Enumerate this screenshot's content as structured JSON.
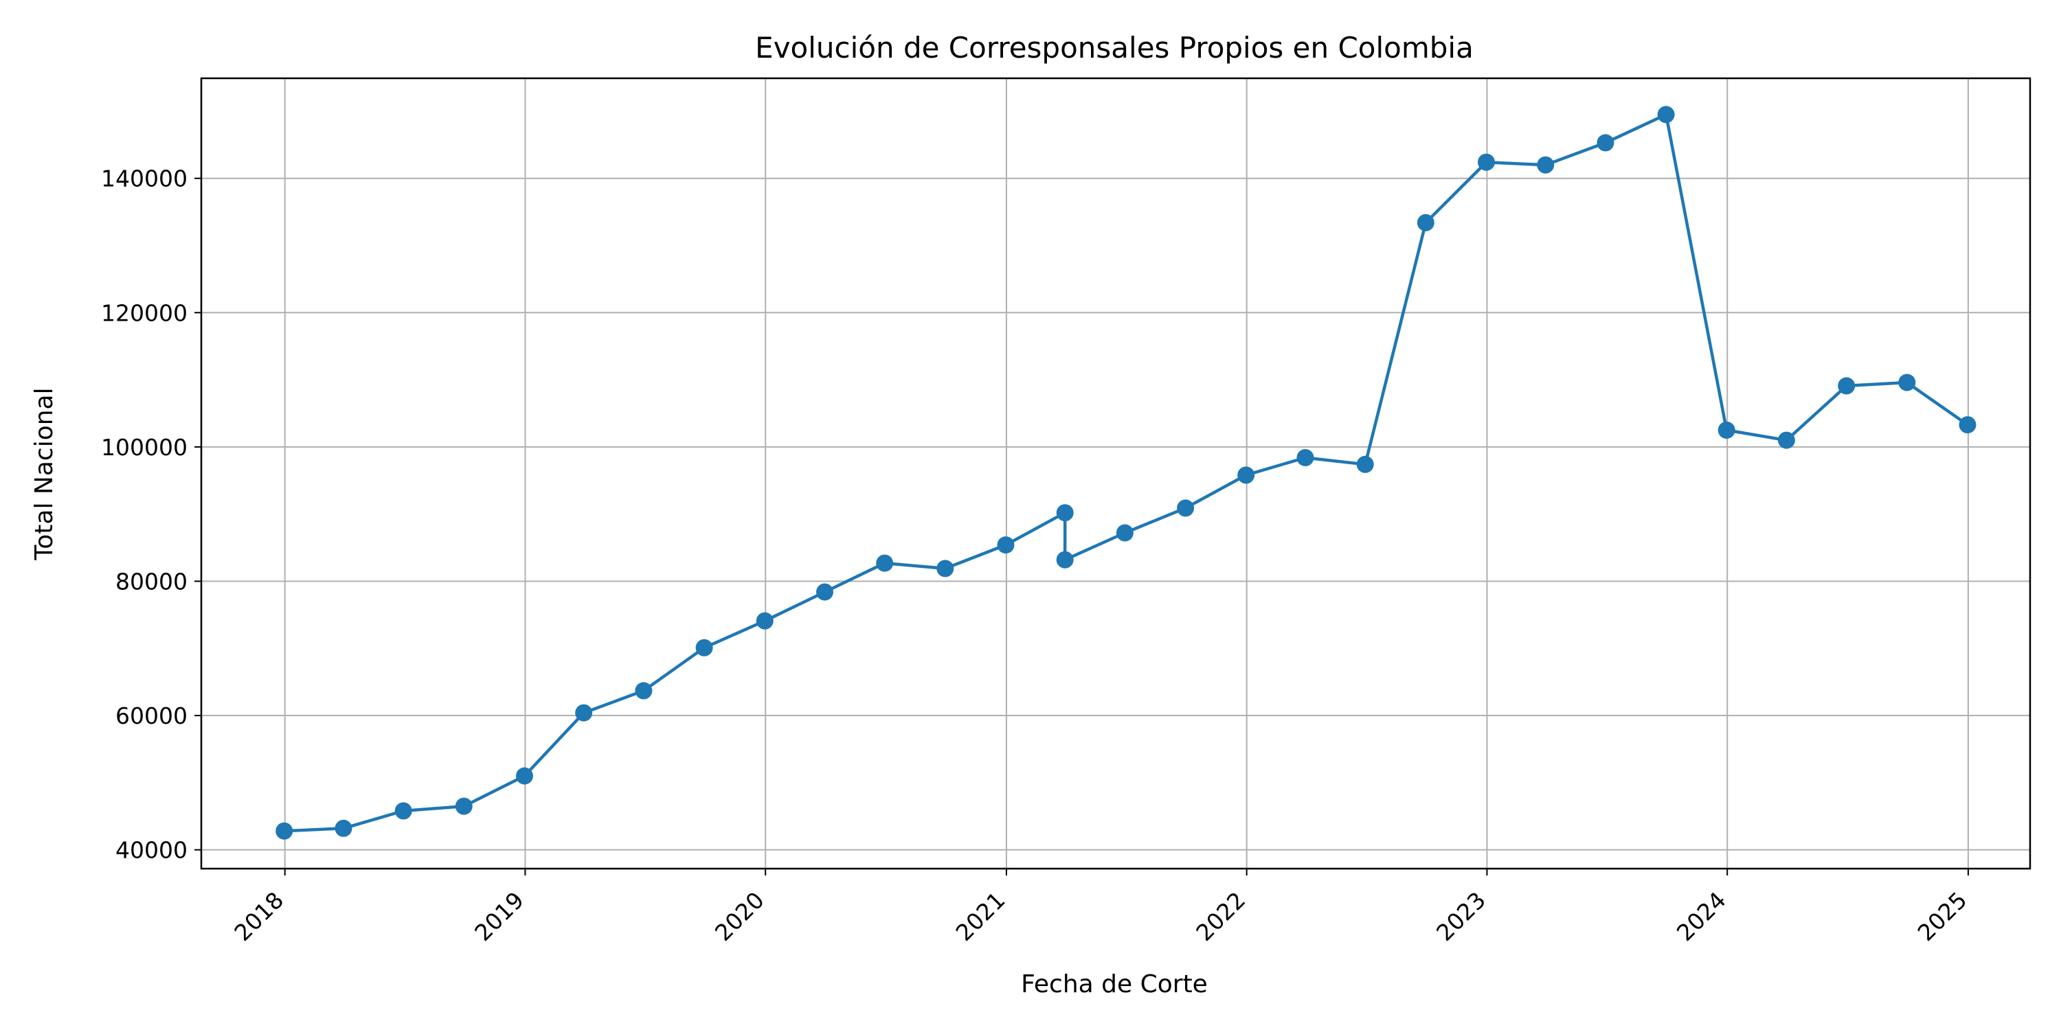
{
  "chart_data": {
    "type": "line",
    "title": "Evolución de Corresponsales Propios en Colombia",
    "xlabel": "Fecha de Corte",
    "ylabel": "Total Nacional",
    "x_tick_labels": [
      "2018",
      "2019",
      "2020",
      "2021",
      "2022",
      "2023",
      "2024",
      "2025"
    ],
    "y_tick_labels": [
      "40000",
      "60000",
      "80000",
      "100000",
      "120000",
      "140000"
    ],
    "xlim": [
      "2017-08-27",
      "2025-04-05"
    ],
    "ylim": [
      37200,
      154900
    ],
    "grid": true,
    "color": "#1f77b4",
    "series": [
      {
        "points": [
          {
            "x": "2017-12-31",
            "y": 42800
          },
          {
            "x": "2018-03-31",
            "y": 43200
          },
          {
            "x": "2018-06-30",
            "y": 45800
          },
          {
            "x": "2018-09-30",
            "y": 46500
          },
          {
            "x": "2018-12-31",
            "y": 51000
          },
          {
            "x": "2019-03-31",
            "y": 60400
          },
          {
            "x": "2019-06-30",
            "y": 63700
          },
          {
            "x": "2019-09-30",
            "y": 70100
          },
          {
            "x": "2019-12-31",
            "y": 74100
          },
          {
            "x": "2020-03-31",
            "y": 78400
          },
          {
            "x": "2020-06-30",
            "y": 82700
          },
          {
            "x": "2020-09-30",
            "y": 81900
          },
          {
            "x": "2020-12-31",
            "y": 85400
          },
          {
            "x": "2021-03-31",
            "y": 90200
          },
          {
            "x": "2021-03-31",
            "y": 83200
          },
          {
            "x": "2021-06-30",
            "y": 87200
          },
          {
            "x": "2021-09-30",
            "y": 90900
          },
          {
            "x": "2021-12-31",
            "y": 95800
          },
          {
            "x": "2022-03-31",
            "y": 98400
          },
          {
            "x": "2022-06-30",
            "y": 97400
          },
          {
            "x": "2022-09-30",
            "y": 133400
          },
          {
            "x": "2022-12-31",
            "y": 142400
          },
          {
            "x": "2023-03-31",
            "y": 142000
          },
          {
            "x": "2023-06-30",
            "y": 145300
          },
          {
            "x": "2023-09-30",
            "y": 149500
          },
          {
            "x": "2023-12-31",
            "y": 102500
          },
          {
            "x": "2024-03-31",
            "y": 101000
          },
          {
            "x": "2024-06-30",
            "y": 109100
          },
          {
            "x": "2024-09-30",
            "y": 109600
          },
          {
            "x": "2024-12-31",
            "y": 103300
          }
        ]
      }
    ]
  }
}
